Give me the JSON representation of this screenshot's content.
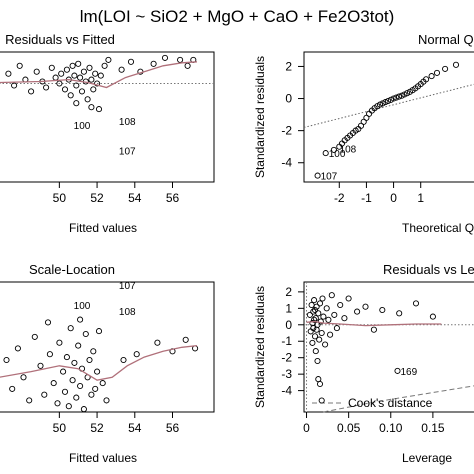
{
  "figure_title": "lm(LOI ~ SiO2 + MgO + CaO + Fe2O3tot)",
  "chart_data": [
    {
      "id": "residuals-vs-fitted",
      "type": "scatter",
      "title": "Residuals vs Fitted",
      "xlabel": "Fitted values",
      "ylabel": "",
      "xlim": [
        46.8,
        58.2
      ],
      "ylim": [
        -5.0,
        1.6
      ],
      "xticks": [
        50,
        52,
        54,
        56
      ],
      "yticks": [],
      "reference_line": {
        "orientation": "h",
        "value": 0,
        "style": "dotted"
      },
      "smooth": [
        [
          46.8,
          0.05
        ],
        [
          49,
          0.1
        ],
        [
          50.5,
          0.2
        ],
        [
          51.5,
          0.05
        ],
        [
          52.5,
          -0.2
        ],
        [
          53.5,
          0.3
        ],
        [
          54.5,
          0.6
        ],
        [
          55.5,
          0.9
        ],
        [
          56.5,
          1.05
        ],
        [
          57.3,
          1.1
        ]
      ],
      "labeled_points": [
        {
          "label": "100",
          "x": 50.6,
          "y": -2.1
        },
        {
          "label": "108",
          "x": 53.0,
          "y": -1.9
        },
        {
          "label": "107",
          "x": 53.0,
          "y": -3.4
        }
      ],
      "points": [
        [
          47.3,
          0.5
        ],
        [
          47.6,
          -0.1
        ],
        [
          47.9,
          0.9
        ],
        [
          48.2,
          0.2
        ],
        [
          48.5,
          -0.4
        ],
        [
          48.8,
          0.6
        ],
        [
          49.1,
          0.1
        ],
        [
          49.3,
          -0.2
        ],
        [
          49.6,
          0.8
        ],
        [
          49.8,
          0.3
        ],
        [
          50.0,
          0.0
        ],
        [
          50.1,
          0.5
        ],
        [
          50.3,
          -0.3
        ],
        [
          50.4,
          0.7
        ],
        [
          50.5,
          0.2
        ],
        [
          50.6,
          -0.6
        ],
        [
          50.7,
          0.9
        ],
        [
          50.8,
          0.4
        ],
        [
          50.9,
          -0.1
        ],
        [
          51.0,
          1.0
        ],
        [
          51.1,
          0.3
        ],
        [
          51.2,
          -0.4
        ],
        [
          51.3,
          0.6
        ],
        [
          51.4,
          0.1
        ],
        [
          51.5,
          -0.8
        ],
        [
          51.6,
          0.8
        ],
        [
          51.7,
          0.2
        ],
        [
          51.8,
          -0.3
        ],
        [
          51.9,
          0.5
        ],
        [
          52.0,
          0.0
        ],
        [
          52.1,
          -1.3
        ],
        [
          52.2,
          0.4
        ],
        [
          52.4,
          0.9
        ],
        [
          52.6,
          1.2
        ],
        [
          53.3,
          0.7
        ],
        [
          53.8,
          1.1
        ],
        [
          54.3,
          0.6
        ],
        [
          55.0,
          1.0
        ],
        [
          55.6,
          1.3
        ],
        [
          56.4,
          1.2
        ],
        [
          56.8,
          0.9
        ],
        [
          57.1,
          1.2
        ],
        [
          51.7,
          -1.2
        ],
        [
          50.9,
          -1.0
        ]
      ]
    },
    {
      "id": "normal-qq",
      "type": "scatter",
      "title": "Normal Q-Q",
      "xlabel": "Theoretical Quantiles",
      "ylabel": "Standardized residuals",
      "xlim": [
        -3.3,
        3.0
      ],
      "ylim": [
        -5.2,
        2.9
      ],
      "xticks": [
        -2,
        -1,
        0,
        1
      ],
      "yticks": [
        2,
        0,
        -2,
        -4
      ],
      "reference_line": {
        "type": "abline",
        "points": [
          [
            -3.3,
            -1.8
          ],
          [
            3.0,
            0.9
          ]
        ],
        "style": "dotted"
      },
      "labeled_points": [
        {
          "label": "100",
          "x": -2.5,
          "y": -3.4
        },
        {
          "label": "108",
          "x": -2.1,
          "y": -3.1
        },
        {
          "label": "107",
          "x": -2.8,
          "y": -4.8
        }
      ],
      "points": [
        [
          -2.8,
          -4.8
        ],
        [
          -2.5,
          -3.4
        ],
        [
          -2.2,
          -3.2
        ],
        [
          -2.0,
          -3.0
        ],
        [
          -1.9,
          -2.8
        ],
        [
          -1.8,
          -2.6
        ],
        [
          -1.7,
          -2.45
        ],
        [
          -1.6,
          -2.3
        ],
        [
          -1.5,
          -2.15
        ],
        [
          -1.4,
          -2.0
        ],
        [
          -1.3,
          -1.9
        ],
        [
          -1.2,
          -1.7
        ],
        [
          -1.1,
          -1.45
        ],
        [
          -1.0,
          -1.2
        ],
        [
          -0.9,
          -0.95
        ],
        [
          -0.8,
          -0.75
        ],
        [
          -0.7,
          -0.6
        ],
        [
          -0.6,
          -0.48
        ],
        [
          -0.5,
          -0.38
        ],
        [
          -0.4,
          -0.3
        ],
        [
          -0.3,
          -0.22
        ],
        [
          -0.2,
          -0.15
        ],
        [
          -0.1,
          -0.08
        ],
        [
          0.0,
          0.0
        ],
        [
          0.1,
          0.06
        ],
        [
          0.2,
          0.12
        ],
        [
          0.3,
          0.18
        ],
        [
          0.4,
          0.25
        ],
        [
          0.5,
          0.33
        ],
        [
          0.6,
          0.42
        ],
        [
          0.7,
          0.52
        ],
        [
          0.8,
          0.63
        ],
        [
          0.9,
          0.76
        ],
        [
          1.0,
          0.9
        ],
        [
          1.1,
          1.05
        ],
        [
          1.2,
          1.2
        ],
        [
          1.4,
          1.4
        ],
        [
          1.6,
          1.6
        ],
        [
          1.9,
          1.85
        ],
        [
          2.3,
          2.1
        ]
      ]
    },
    {
      "id": "scale-location",
      "type": "scatter",
      "title": "Scale-Location",
      "xlabel": "Fitted values",
      "ylabel": "",
      "xlim": [
        46.8,
        58.2
      ],
      "ylim": [
        0.0,
        2.25
      ],
      "xticks": [
        50,
        52,
        54,
        56
      ],
      "yticks": [],
      "smooth": [
        [
          46.8,
          0.6
        ],
        [
          48.5,
          0.7
        ],
        [
          50,
          0.8
        ],
        [
          51,
          0.75
        ],
        [
          52,
          0.55
        ],
        [
          52.8,
          0.6
        ],
        [
          53.6,
          0.8
        ],
        [
          54.5,
          0.95
        ],
        [
          55.5,
          1.05
        ],
        [
          56.5,
          1.12
        ],
        [
          57.3,
          1.15
        ]
      ],
      "labeled_points": [
        {
          "label": "107",
          "x": 53.0,
          "y": 2.2
        },
        {
          "label": "100",
          "x": 50.6,
          "y": 1.85
        },
        {
          "label": "108",
          "x": 53.0,
          "y": 1.75
        }
      ],
      "points": [
        [
          47.2,
          0.9
        ],
        [
          47.5,
          0.4
        ],
        [
          47.8,
          1.1
        ],
        [
          48.1,
          0.6
        ],
        [
          48.4,
          0.2
        ],
        [
          48.7,
          1.3
        ],
        [
          49.0,
          0.8
        ],
        [
          49.2,
          0.3
        ],
        [
          49.5,
          1.0
        ],
        [
          49.7,
          0.5
        ],
        [
          49.9,
          0.15
        ],
        [
          50.0,
          1.2
        ],
        [
          50.2,
          0.7
        ],
        [
          50.3,
          0.35
        ],
        [
          50.4,
          0.95
        ],
        [
          50.5,
          0.1
        ],
        [
          50.6,
          1.45
        ],
        [
          50.7,
          0.55
        ],
        [
          50.8,
          0.85
        ],
        [
          50.9,
          0.25
        ],
        [
          51.0,
          1.15
        ],
        [
          51.1,
          0.45
        ],
        [
          51.2,
          0.75
        ],
        [
          51.3,
          0.05
        ],
        [
          51.4,
          1.35
        ],
        [
          51.5,
          0.6
        ],
        [
          51.6,
          0.9
        ],
        [
          51.7,
          0.3
        ],
        [
          51.8,
          1.05
        ],
        [
          51.9,
          0.4
        ],
        [
          52.0,
          0.7
        ],
        [
          52.1,
          1.4
        ],
        [
          52.3,
          0.5
        ],
        [
          52.5,
          0.2
        ],
        [
          53.4,
          0.9
        ],
        [
          54.1,
          1.0
        ],
        [
          55.2,
          1.2
        ],
        [
          56.0,
          1.05
        ],
        [
          56.7,
          1.25
        ],
        [
          57.2,
          1.1
        ],
        [
          49.4,
          1.55
        ],
        [
          51.1,
          1.6
        ]
      ]
    },
    {
      "id": "residuals-vs-leverage",
      "type": "scatter",
      "title": "Residuals vs Leverage",
      "xlabel": "Leverage",
      "ylabel": "Standardized residuals",
      "xlim": [
        -0.003,
        0.2
      ],
      "ylim": [
        -5.3,
        2.6
      ],
      "xticks": [
        0.0,
        0.05,
        0.1,
        0.15
      ],
      "yticks": [
        2,
        1,
        0,
        -1,
        -2,
        -3,
        -4
      ],
      "reference_line": {
        "orientation": "h",
        "value": 0,
        "style": "dotted"
      },
      "cooks_distance_label": "Cook's distance",
      "smooth": [
        [
          0.0,
          0.15
        ],
        [
          0.01,
          0.2
        ],
        [
          0.02,
          0.1
        ],
        [
          0.04,
          0.05
        ],
        [
          0.07,
          -0.05
        ],
        [
          0.1,
          0.0
        ],
        [
          0.13,
          0.05
        ],
        [
          0.16,
          0.05
        ]
      ],
      "cooks_curve": [
        [
          0.02,
          -5.3
        ],
        [
          0.05,
          -5.0
        ],
        [
          0.08,
          -4.7
        ],
        [
          0.11,
          -4.45
        ],
        [
          0.14,
          -4.2
        ],
        [
          0.17,
          -3.95
        ],
        [
          0.2,
          -3.7
        ]
      ],
      "labeled_points": [
        {
          "label": "169",
          "x": 0.108,
          "y": -2.8
        }
      ],
      "points": [
        [
          0.004,
          0.6
        ],
        [
          0.005,
          -0.4
        ],
        [
          0.006,
          1.2
        ],
        [
          0.007,
          0.1
        ],
        [
          0.007,
          -1.1
        ],
        [
          0.008,
          0.8
        ],
        [
          0.008,
          -0.2
        ],
        [
          0.009,
          1.5
        ],
        [
          0.009,
          0.3
        ],
        [
          0.01,
          -0.7
        ],
        [
          0.01,
          0.9
        ],
        [
          0.011,
          -1.6
        ],
        [
          0.011,
          0.4
        ],
        [
          0.012,
          1.1
        ],
        [
          0.012,
          -0.3
        ],
        [
          0.013,
          0.0
        ],
        [
          0.013,
          -2.2
        ],
        [
          0.014,
          0.7
        ],
        [
          0.015,
          -0.9
        ],
        [
          0.016,
          1.3
        ],
        [
          0.017,
          0.2
        ],
        [
          0.018,
          -0.5
        ],
        [
          0.019,
          1.6
        ],
        [
          0.02,
          0.5
        ],
        [
          0.022,
          -1.2
        ],
        [
          0.024,
          1.0
        ],
        [
          0.026,
          0.3
        ],
        [
          0.028,
          -0.6
        ],
        [
          0.03,
          1.8
        ],
        [
          0.033,
          0.6
        ],
        [
          0.036,
          -0.2
        ],
        [
          0.04,
          1.2
        ],
        [
          0.045,
          0.4
        ],
        [
          0.05,
          1.6
        ],
        [
          0.06,
          0.8
        ],
        [
          0.07,
          1.1
        ],
        [
          0.08,
          -0.3
        ],
        [
          0.09,
          0.9
        ],
        [
          0.11,
          0.7
        ],
        [
          0.13,
          1.3
        ],
        [
          0.15,
          0.5
        ],
        [
          0.014,
          -3.3
        ],
        [
          0.016,
          -3.6
        ],
        [
          0.018,
          -4.6
        ],
        [
          0.108,
          -2.8
        ]
      ]
    }
  ]
}
